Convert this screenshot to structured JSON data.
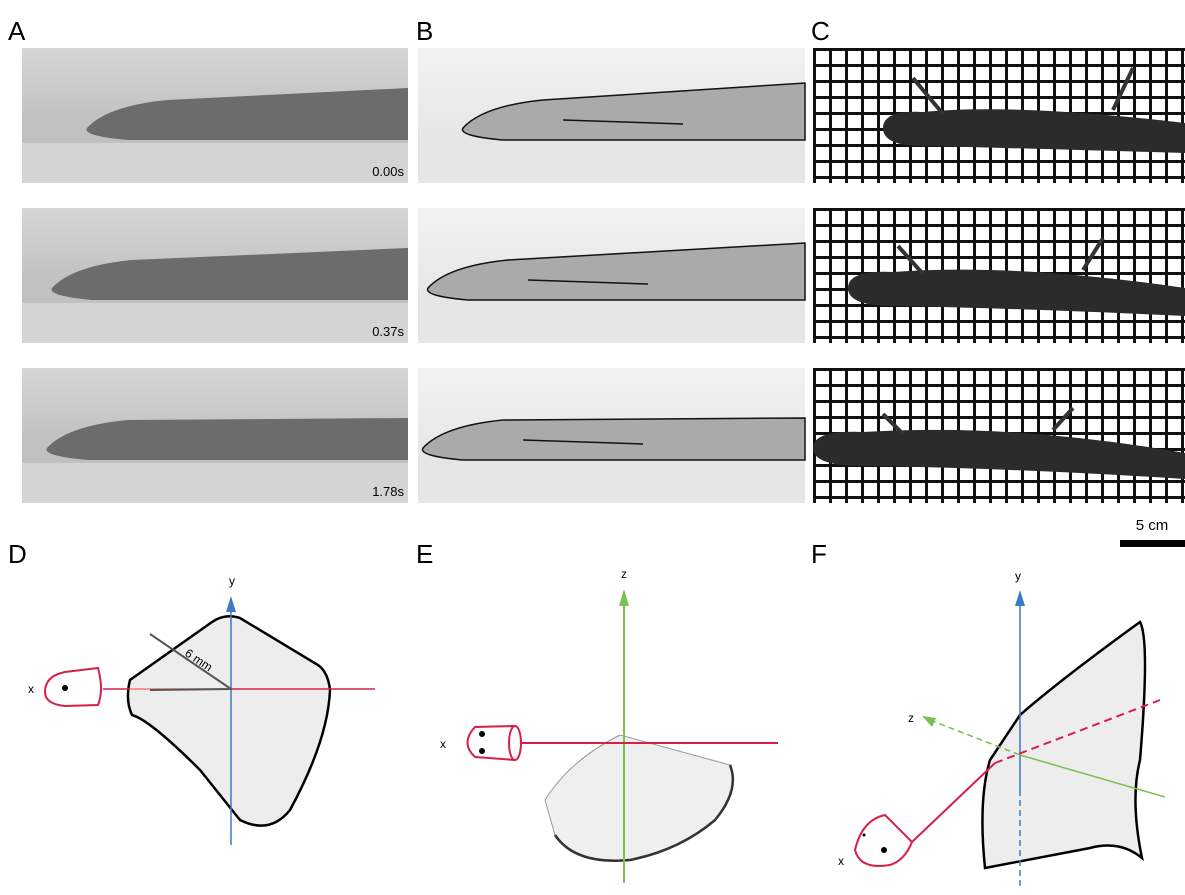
{
  "panel_labels": [
    "A",
    "B",
    "C",
    "D",
    "E",
    "F"
  ],
  "timestamps": [
    "0.00s",
    "0.37s",
    "1.78s"
  ],
  "scale_bar": "5 cm",
  "diagram_d": {
    "axis_y": "y",
    "axis_x": "x",
    "radius": "6 mm"
  },
  "diagram_e": {
    "axis_z": "z",
    "axis_x": "x"
  },
  "diagram_f": {
    "axis_y": "y",
    "axis_z": "z",
    "axis_x": "x"
  }
}
